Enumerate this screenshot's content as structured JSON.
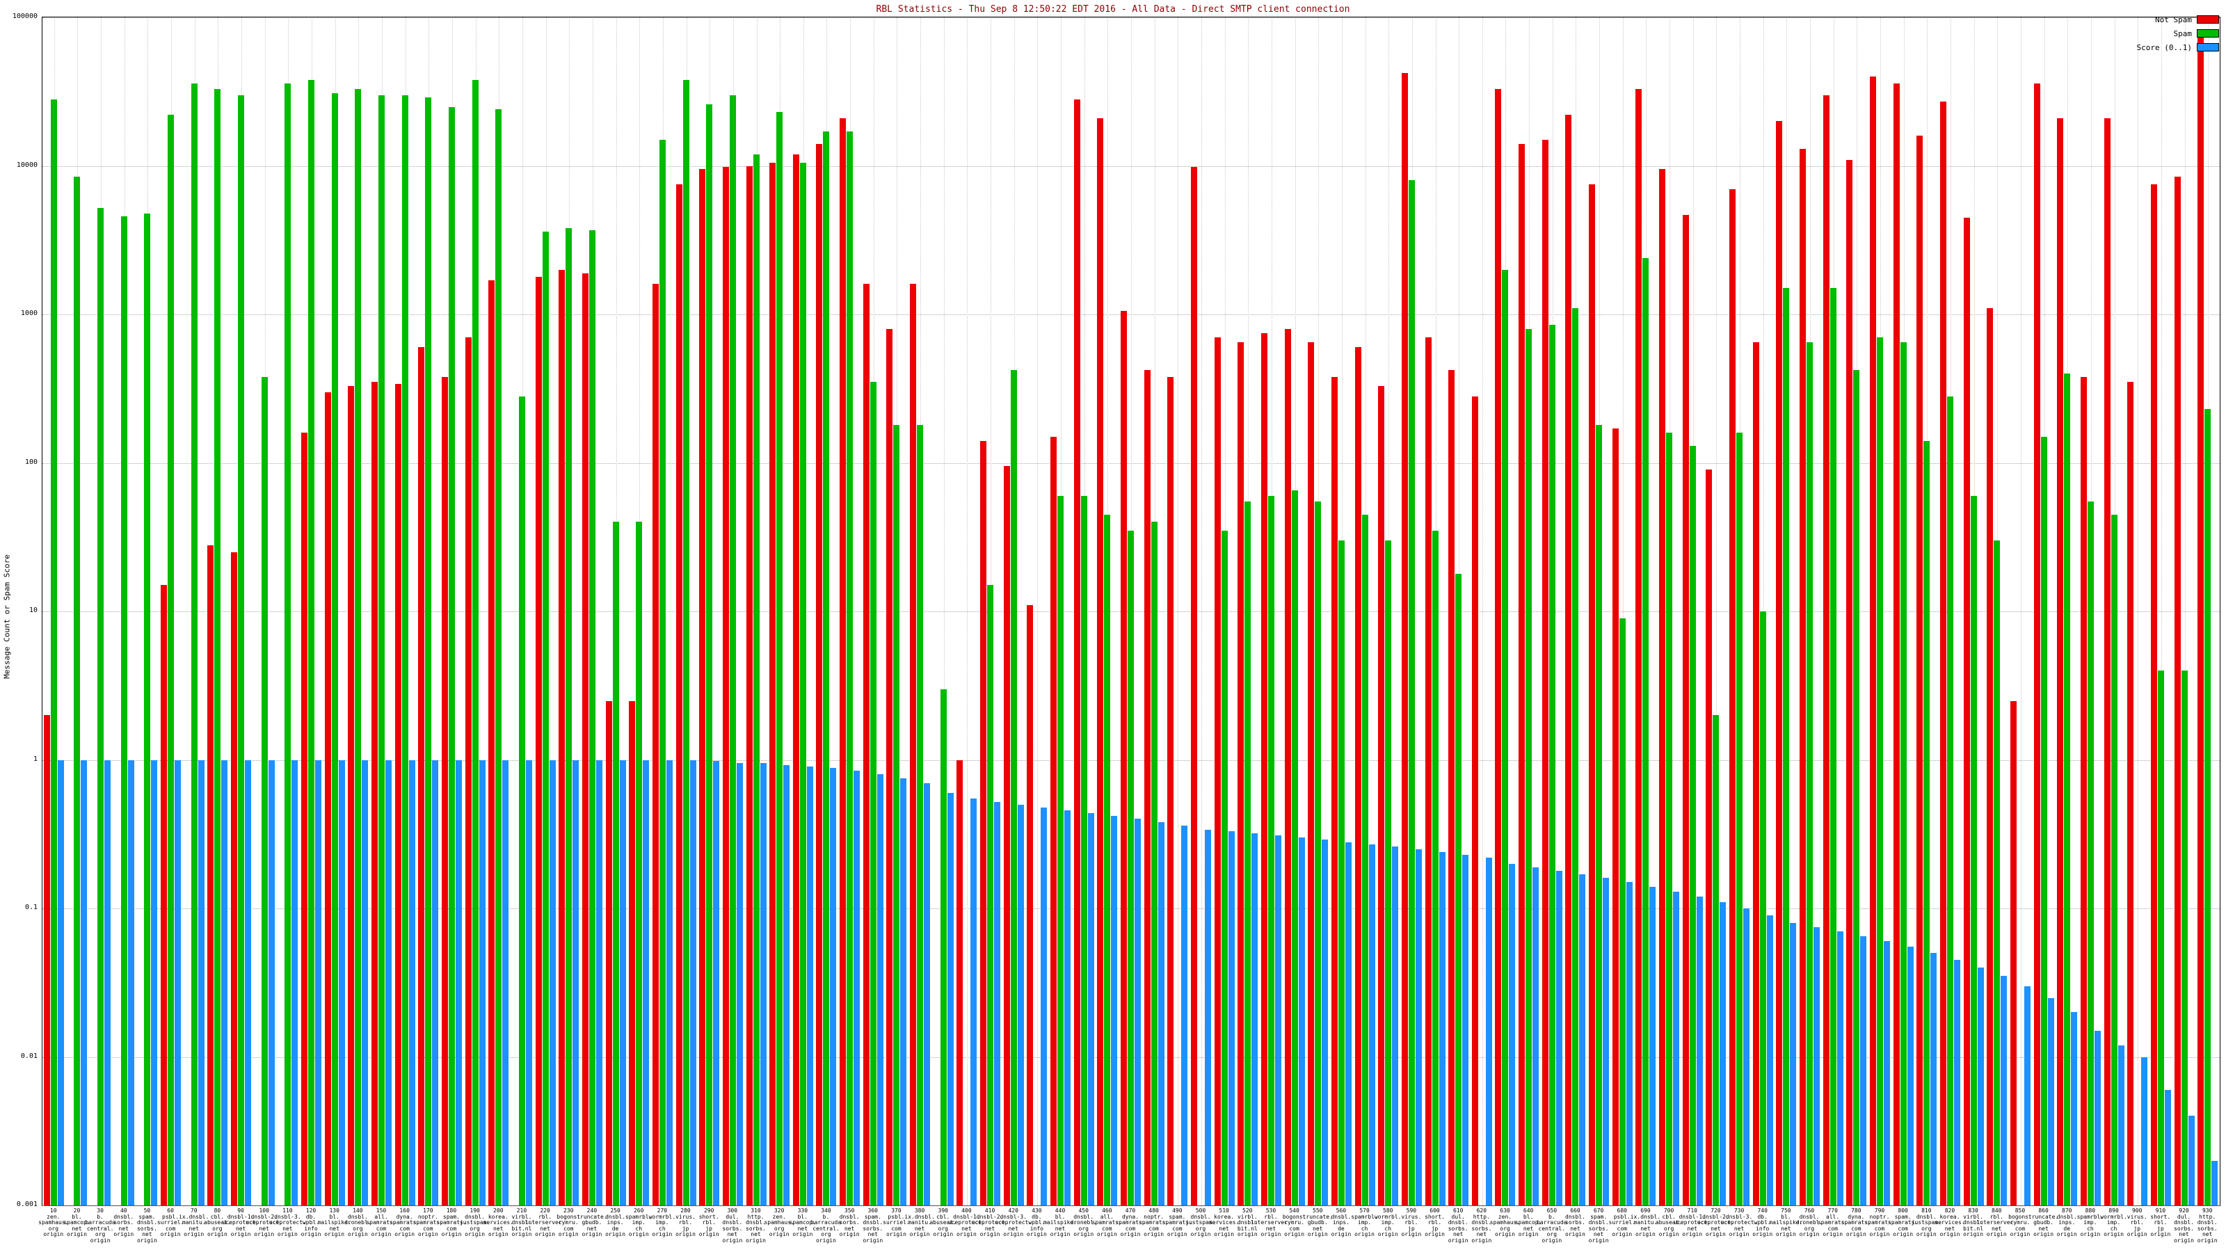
{
  "title": "RBL Statistics - Thu Sep  8 12:50:22 EDT 2016 - All Data - Direct SMTP client connection",
  "ylabel": "Message Count or Spam Score",
  "yticks": [
    "100000",
    "10000",
    "1000",
    "100",
    "10",
    "1",
    "0.1",
    "0.01",
    "0.001"
  ],
  "legend": [
    {
      "label": "Not Spam",
      "color": "#ee0000"
    },
    {
      "label": "Spam",
      "color": "#00bb00"
    },
    {
      "label": "Score (0..1)",
      "color": "#1e90ff"
    }
  ],
  "chart_data": {
    "type": "bar",
    "scale": "log",
    "ylim": [
      0.001,
      100000
    ],
    "grid": true,
    "legend_position": "top-right",
    "series_names": [
      "Not Spam",
      "Spam",
      "Score (0..1)"
    ],
    "colors": {
      "not_spam": "#ee0000",
      "spam": "#00bb00",
      "score": "#1e90ff"
    },
    "groups": [
      {
        "label": "10|zen.|spamhaus.|org|origin",
        "not_spam": 2,
        "spam": 28000,
        "score": 1.0
      },
      {
        "label": "20|bl.|spamcop.|net|origin",
        "not_spam": 0,
        "spam": 8500,
        "score": 1.0
      },
      {
        "label": "30|b.|barracuda|central.|org|origin",
        "not_spam": 0,
        "spam": 5200,
        "score": 1.0
      },
      {
        "label": "40|dnsbl.|sorbs.|net|origin",
        "not_spam": 0,
        "spam": 4600,
        "score": 1.0
      },
      {
        "label": "50|spam.|dnsbl.|sorbs.|net|origin",
        "not_spam": 0,
        "spam": 4800,
        "score": 1.0
      },
      {
        "label": "60|psbl.|surriel.|com|origin",
        "not_spam": 15,
        "spam": 22000,
        "score": 1.0
      },
      {
        "label": "70|ix.dnsbl.|manitu.|net|origin",
        "not_spam": 0,
        "spam": 36000,
        "score": 1.0
      },
      {
        "label": "80|cbl.|abuseat.|org|origin",
        "not_spam": 28,
        "spam": 33000,
        "score": 1.0
      },
      {
        "label": "90|dnsbl-1.|uceprotect.|net|origin",
        "not_spam": 25,
        "spam": 30000,
        "score": 1.0
      },
      {
        "label": "100|dnsbl-2.|uceprotect.|net|origin",
        "not_spam": 0,
        "spam": 380,
        "score": 1.0
      },
      {
        "label": "110|dnsbl-3.|uceprotect.|net|origin",
        "not_spam": 0,
        "spam": 36000,
        "score": 1.0
      },
      {
        "label": "120|db.|wpbl.|info|origin",
        "not_spam": 160,
        "spam": 38000,
        "score": 1.0
      },
      {
        "label": "130|bl.|mailspike.|net|origin",
        "not_spam": 300,
        "spam": 31000,
        "score": 1.0
      },
      {
        "label": "140|dnsbl.|dronebl.|org|origin",
        "not_spam": 330,
        "spam": 33000,
        "score": 1.0
      },
      {
        "label": "150|all.|spamrats.|com|origin",
        "not_spam": 350,
        "spam": 30000,
        "score": 1.0
      },
      {
        "label": "160|dyna.|spamrats.|com|origin",
        "not_spam": 340,
        "spam": 30000,
        "score": 1.0
      },
      {
        "label": "170|noptr.|spamrats.|com|origin",
        "not_spam": 600,
        "spam": 29000,
        "score": 1.0
      },
      {
        "label": "180|spam.|spamrats.|com|origin",
        "not_spam": 380,
        "spam": 25000,
        "score": 1.0
      },
      {
        "label": "190|dnsbl.|justspam.|org|origin",
        "not_spam": 700,
        "spam": 38000,
        "score": 1.0
      },
      {
        "label": "200|korea.|services.|net|origin",
        "not_spam": 1700,
        "spam": 24000,
        "score": 1.0
      },
      {
        "label": "210|virbl.|dnsbl.|bit.nl|origin",
        "not_spam": 0,
        "spam": 280,
        "score": 1.0
      },
      {
        "label": "220|rbl.|interserver.|net|origin",
        "not_spam": 1800,
        "spam": 3600,
        "score": 1.0
      },
      {
        "label": "230|bogons.|cymru.|com|origin",
        "not_spam": 2000,
        "spam": 3800,
        "score": 1.0
      },
      {
        "label": "240|truncate.|gbudb.|net|origin",
        "not_spam": 1900,
        "spam": 3700,
        "score": 1.0
      },
      {
        "label": "250|dnsbl.|inps.|de|origin",
        "not_spam": 2.5,
        "spam": 40,
        "score": 1.0
      },
      {
        "label": "260|spamrbl.|imp.|ch|origin",
        "not_spam": 2.5,
        "spam": 40,
        "score": 1.0
      },
      {
        "label": "270|wormrbl.|imp.|ch|origin",
        "not_spam": 1600,
        "spam": 15000,
        "score": 1.0
      },
      {
        "label": "280|virus.|rbl.|jp|origin",
        "not_spam": 7500,
        "spam": 38000,
        "score": 1.0
      },
      {
        "label": "290|short.|rbl.|jp|origin",
        "not_spam": 9500,
        "spam": 26000,
        "score": 0.98
      },
      {
        "label": "300|dul.|dnsbl.|sorbs.|net|origin",
        "not_spam": 9800,
        "spam": 30000,
        "score": 0.95
      },
      {
        "label": "310|http.|dnsbl.|sorbs.|net|origin",
        "not_spam": 10000,
        "spam": 12000,
        "score": 0.95
      },
      {
        "label": "320|zen.|spamhaus.|org|origin",
        "not_spam": 10500,
        "spam": 23000,
        "score": 0.92
      },
      {
        "label": "330|bl.|spamcop.|net|origin",
        "not_spam": 12000,
        "spam": 10500,
        "score": 0.9
      },
      {
        "label": "340|b.|barracuda|central.|org|origin",
        "not_spam": 14000,
        "spam": 17000,
        "score": 0.88
      },
      {
        "label": "350|dnsbl.|sorbs.|net|origin",
        "not_spam": 21000,
        "spam": 17000,
        "score": 0.85
      },
      {
        "label": "360|spam.|dnsbl.|sorbs.|net|origin",
        "not_spam": 1600,
        "spam": 350,
        "score": 0.8
      },
      {
        "label": "370|psbl.|surriel.|com|origin",
        "not_spam": 800,
        "spam": 180,
        "score": 0.75
      },
      {
        "label": "380|ix.dnsbl.|manitu.|net|origin",
        "not_spam": 1600,
        "spam": 180,
        "score": 0.7
      },
      {
        "label": "390|cbl.|abuseat.|org|origin",
        "not_spam": 0,
        "spam": 3,
        "score": 0.6
      },
      {
        "label": "400|dnsbl-1.|uceprotect.|net|origin",
        "not_spam": 1,
        "spam": 0,
        "score": 0.55
      },
      {
        "label": "410|dnsbl-2.|uceprotect.|net|origin",
        "not_spam": 140,
        "spam": 15,
        "score": 0.52
      },
      {
        "label": "420|dnsbl-3.|uceprotect.|net|origin",
        "not_spam": 95,
        "spam": 420,
        "score": 0.5
      },
      {
        "label": "430|db.|wpbl.|info|origin",
        "not_spam": 11,
        "spam": 0,
        "score": 0.48
      },
      {
        "label": "440|bl.|mailspike.|net|origin",
        "not_spam": 150,
        "spam": 60,
        "score": 0.46
      },
      {
        "label": "450|dnsbl.|dronebl.|org|origin",
        "not_spam": 28000,
        "spam": 60,
        "score": 0.44
      },
      {
        "label": "460|all.|spamrats.|com|origin",
        "not_spam": 21000,
        "spam": 45,
        "score": 0.42
      },
      {
        "label": "470|dyna.|spamrats.|com|origin",
        "not_spam": 1050,
        "spam": 35,
        "score": 0.4
      },
      {
        "label": "480|noptr.|spamrats.|com|origin",
        "not_spam": 420,
        "spam": 40,
        "score": 0.38
      },
      {
        "label": "490|spam.|spamrats.|com|origin",
        "not_spam": 380,
        "spam": 0,
        "score": 0.36
      },
      {
        "label": "500|dnsbl.|justspam.|org|origin",
        "not_spam": 9800,
        "spam": 0,
        "score": 0.34
      },
      {
        "label": "510|korea.|services.|net|origin",
        "not_spam": 700,
        "spam": 35,
        "score": 0.33
      },
      {
        "label": "520|virbl.|dnsbl.|bit.nl|origin",
        "not_spam": 650,
        "spam": 55,
        "score": 0.32
      },
      {
        "label": "530|rbl.|interserver.|net|origin",
        "not_spam": 750,
        "spam": 60,
        "score": 0.31
      },
      {
        "label": "540|bogons.|cymru.|com|origin",
        "not_spam": 800,
        "spam": 65,
        "score": 0.3
      },
      {
        "label": "550|truncate.|gbudb.|net|origin",
        "not_spam": 650,
        "spam": 55,
        "score": 0.29
      },
      {
        "label": "560|dnsbl.|inps.|de|origin",
        "not_spam": 380,
        "spam": 30,
        "score": 0.28
      },
      {
        "label": "570|spamrbl.|imp.|ch|origin",
        "not_spam": 600,
        "spam": 45,
        "score": 0.27
      },
      {
        "label": "580|wormrbl.|imp.|ch|origin",
        "not_spam": 330,
        "spam": 30,
        "score": 0.26
      },
      {
        "label": "590|virus.|rbl.|jp|origin",
        "not_spam": 42000,
        "spam": 8000,
        "score": 0.25
      },
      {
        "label": "600|short.|rbl.|jp|origin",
        "not_spam": 700,
        "spam": 35,
        "score": 0.24
      },
      {
        "label": "610|dul.|dnsbl.|sorbs.|net|origin",
        "not_spam": 420,
        "spam": 18,
        "score": 0.23
      },
      {
        "label": "620|http.|dnsbl.|sorbs.|net|origin",
        "not_spam": 280,
        "spam": 0,
        "score": 0.22
      },
      {
        "label": "630|zen.|spamhaus.|org|origin",
        "not_spam": 33000,
        "spam": 2000,
        "score": 0.2
      },
      {
        "label": "640|bl.|spamcop.|net|origin",
        "not_spam": 14000,
        "spam": 800,
        "score": 0.19
      },
      {
        "label": "650|b.|barracuda|central.|org|origin",
        "not_spam": 15000,
        "spam": 850,
        "score": 0.18
      },
      {
        "label": "660|dnsbl.|sorbs.|net|origin",
        "not_spam": 22000,
        "spam": 1100,
        "score": 0.17
      },
      {
        "label": "670|spam.|dnsbl.|sorbs.|net|origin",
        "not_spam": 7500,
        "spam": 180,
        "score": 0.16
      },
      {
        "label": "680|psbl.|surriel.|com|origin",
        "not_spam": 170,
        "spam": 9,
        "score": 0.15
      },
      {
        "label": "690|ix.dnsbl.|manitu.|net|origin",
        "not_spam": 33000,
        "spam": 2400,
        "score": 0.14
      },
      {
        "label": "700|cbl.|abuseat.|org|origin",
        "not_spam": 9500,
        "spam": 160,
        "score": 0.13
      },
      {
        "label": "710|dnsbl-1.|uceprotect.|net|origin",
        "not_spam": 4700,
        "spam": 130,
        "score": 0.12
      },
      {
        "label": "720|dnsbl-2.|uceprotect.|net|origin",
        "not_spam": 90,
        "spam": 2,
        "score": 0.11
      },
      {
        "label": "730|dnsbl-3.|uceprotect.|net|origin",
        "not_spam": 7000,
        "spam": 160,
        "score": 0.1
      },
      {
        "label": "740|db.|wpbl.|info|origin",
        "not_spam": 650,
        "spam": 10,
        "score": 0.09
      },
      {
        "label": "750|bl.|mailspike.|net|origin",
        "not_spam": 20000,
        "spam": 1500,
        "score": 0.08
      },
      {
        "label": "760|dnsbl.|dronebl.|org|origin",
        "not_spam": 13000,
        "spam": 650,
        "score": 0.075
      },
      {
        "label": "770|all.|spamrats.|com|origin",
        "not_spam": 30000,
        "spam": 1500,
        "score": 0.07
      },
      {
        "label": "780|dyna.|spamrats.|com|origin",
        "not_spam": 11000,
        "spam": 420,
        "score": 0.065
      },
      {
        "label": "790|noptr.|spamrats.|com|origin",
        "not_spam": 40000,
        "spam": 700,
        "score": 0.06
      },
      {
        "label": "800|spam.|spamrats.|com|origin",
        "not_spam": 36000,
        "spam": 650,
        "score": 0.055
      },
      {
        "label": "810|dnsbl.|justspam.|org|origin",
        "not_spam": 16000,
        "spam": 140,
        "score": 0.05
      },
      {
        "label": "820|korea.|services.|net|origin",
        "not_spam": 27000,
        "spam": 280,
        "score": 0.045
      },
      {
        "label": "830|virbl.|dnsbl.|bit.nl|origin",
        "not_spam": 4500,
        "spam": 60,
        "score": 0.04
      },
      {
        "label": "840|rbl.|interserver.|net|origin",
        "not_spam": 1100,
        "spam": 30,
        "score": 0.035
      },
      {
        "label": "850|bogons.|cymru.|com|origin",
        "not_spam": 2.5,
        "spam": 0,
        "score": 0.03
      },
      {
        "label": "860|truncate.|gbudb.|net|origin",
        "not_spam": 36000,
        "spam": 150,
        "score": 0.025
      },
      {
        "label": "870|dnsbl.|inps.|de|origin",
        "not_spam": 21000,
        "spam": 400,
        "score": 0.02
      },
      {
        "label": "880|spamrbl.|imp.|ch|origin",
        "not_spam": 380,
        "spam": 55,
        "score": 0.015
      },
      {
        "label": "890|wormrbl.|imp.|ch|origin",
        "not_spam": 21000,
        "spam": 45,
        "score": 0.012
      },
      {
        "label": "900|virus.|rbl.|jp|origin",
        "not_spam": 350,
        "spam": 0,
        "score": 0.01
      },
      {
        "label": "910|short.|rbl.|jp|origin",
        "not_spam": 7500,
        "spam": 4,
        "score": 0.006
      },
      {
        "label": "920|dul.|dnsbl.|sorbs.|net|origin",
        "not_spam": 8500,
        "spam": 4,
        "score": 0.004
      },
      {
        "label": "930|http.|dnsbl.|sorbs.|net|origin",
        "not_spam": 80000,
        "spam": 230,
        "score": 0.002
      }
    ]
  }
}
